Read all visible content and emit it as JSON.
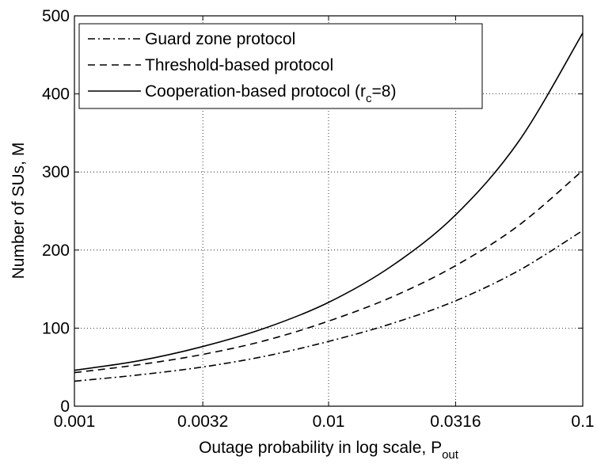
{
  "chart_data": {
    "type": "line",
    "xlabel": "Outage probability in log scale, P",
    "xlabel_sub": "out",
    "ylabel": "Number of SUs, M",
    "x_scale": "log",
    "xlim": [
      0.001,
      0.1
    ],
    "ylim": [
      0,
      500
    ],
    "x_ticks": [
      0.001,
      0.0032,
      0.01,
      0.0316,
      0.1
    ],
    "x_tick_labels": [
      "0.001",
      "0.0032",
      "0.01",
      "0.0316",
      "0.1"
    ],
    "y_ticks": [
      0,
      100,
      200,
      300,
      400,
      500
    ],
    "y_tick_labels": [
      "0",
      "100",
      "200",
      "300",
      "400",
      "500"
    ],
    "grid": true,
    "legend_position": "top-left",
    "series": [
      {
        "name": "Guard zone protocol",
        "style": "dash-dot",
        "x": [
          0.001,
          0.00178,
          0.00316,
          0.00562,
          0.01,
          0.0178,
          0.0316,
          0.0562,
          0.1
        ],
        "y": [
          32,
          40,
          50,
          64,
          83,
          106,
          135,
          174,
          225
        ]
      },
      {
        "name": "Threshold-based protocol",
        "style": "dashed",
        "x": [
          0.001,
          0.00178,
          0.00316,
          0.00562,
          0.01,
          0.0178,
          0.0316,
          0.0562,
          0.1
        ],
        "y": [
          43,
          53,
          66,
          84,
          109,
          140,
          180,
          232,
          302
        ]
      },
      {
        "name": "Cooperation-based protocol (r",
        "name_sub": "c",
        "name_suffix": "=8)",
        "style": "solid",
        "x": [
          0.001,
          0.00178,
          0.00316,
          0.00562,
          0.01,
          0.0178,
          0.0316,
          0.0562,
          0.1
        ],
        "y": [
          46,
          58,
          76,
          100,
          133,
          180,
          245,
          340,
          478
        ]
      }
    ]
  }
}
